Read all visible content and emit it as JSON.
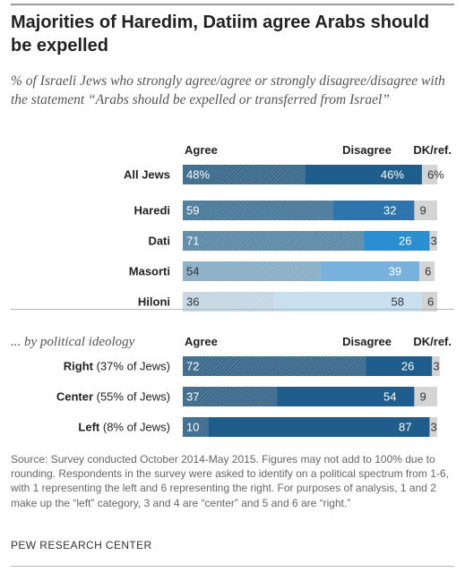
{
  "title": "Majorities of Haredim, Datiim agree Arabs should be expelled",
  "subtitle": "% of Israeli Jews who strongly agree/agree or strongly disagree/disagree with the statement “Arabs should be expelled or transferred from Israel”",
  "source": "Source: Survey conducted October 2014-May 2015. Figures may not add to 100% due to rounding. Respondents in the survey were asked to identify on a political spectrum from 1-6, with 1 representing the left and 6 representing the right. For purposes of analysis, 1 and 2 make up the “left” category, 3 and 4 are “center” and 5 and 6 are “right.”",
  "brand": "PEW RESEARCH CENTER",
  "colors": {
    "dk_fill": "#d4d4d4",
    "text_dark": "#222222"
  },
  "chart_data": {
    "type": "bar",
    "orientation": "horizontal",
    "stacked": true,
    "series_names": [
      "Agree",
      "Disagree",
      "DK/ref."
    ],
    "xlim": [
      0,
      100
    ],
    "groups": [
      {
        "label": "",
        "rows": [
          {
            "label": "All Jews",
            "values": [
              48,
              46,
              6
            ],
            "labels": [
              "48%",
              "46%",
              "6%"
            ],
            "agree_color": "#3b6a8c",
            "disagree_color": "#1f5d8c"
          },
          {
            "label": "Haredi",
            "values": [
              59,
              32,
              9
            ],
            "labels": [
              "59",
              "32",
              "9"
            ],
            "agree_color": "#4a7a99",
            "disagree_color": "#2e75ad"
          },
          {
            "label": "Dati",
            "values": [
              71,
              26,
              3
            ],
            "labels": [
              "71",
              "26",
              "3"
            ],
            "agree_color": "#5d8aa6",
            "disagree_color": "#2b8ed0"
          },
          {
            "label": "Masorti",
            "values": [
              54,
              39,
              6
            ],
            "labels": [
              "54",
              "39",
              "6"
            ],
            "agree_color": "#8aaec5",
            "disagree_color": "#78b2dc"
          },
          {
            "label": "Hiloni",
            "values": [
              36,
              58,
              6
            ],
            "labels": [
              "36",
              "58",
              "6"
            ],
            "agree_color": "#c5d7e4",
            "disagree_color": "#c9e0f0"
          }
        ]
      },
      {
        "label": "... by political ideology",
        "rows": [
          {
            "label": "Right",
            "label_note": "(37% of Jews)",
            "values": [
              72,
              26,
              3
            ],
            "labels": [
              "72",
              "26",
              "3"
            ],
            "agree_color": "#3b6a8c",
            "disagree_color": "#1f5d8c"
          },
          {
            "label": "Center",
            "label_note": "(55% of Jews)",
            "values": [
              37,
              54,
              9
            ],
            "labels": [
              "37",
              "54",
              "9"
            ],
            "agree_color": "#3b6a8c",
            "disagree_color": "#1f5d8c"
          },
          {
            "label": "Left",
            "label_note": "(8% of Jews)",
            "values": [
              10,
              87,
              3
            ],
            "labels": [
              "10",
              "87",
              "3"
            ],
            "agree_color": "#3b6a8c",
            "disagree_color": "#1f5d8c"
          }
        ]
      }
    ]
  }
}
